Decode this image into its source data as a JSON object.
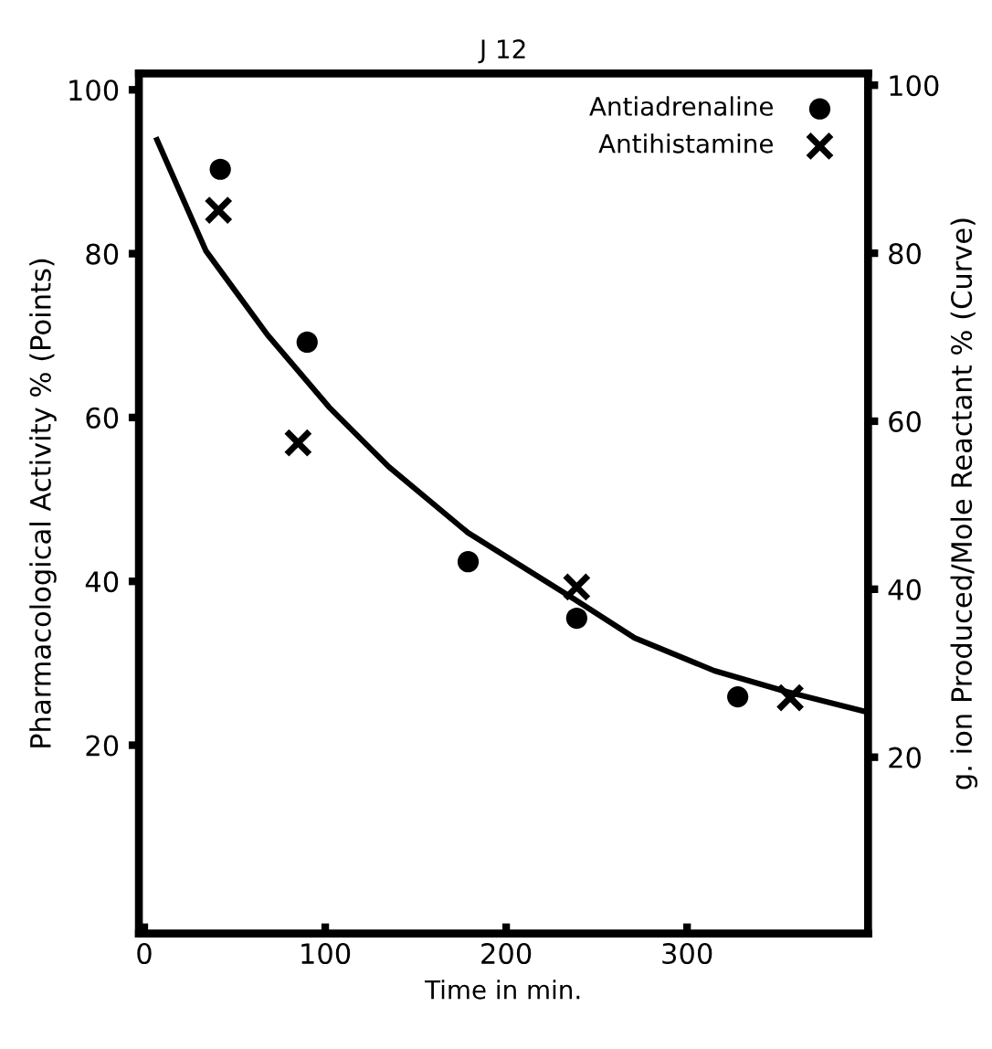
{
  "chart_data": {
    "type": "scatter",
    "title": "J 12",
    "xlabel": "Time in min.",
    "ylabel": "Pharmacological Activity % (Points)",
    "y2label": "g. ion Produced/Mole Reactant % (Curve)",
    "xlim": [
      -3,
      400
    ],
    "xticks": [
      0,
      100,
      200,
      300
    ],
    "ylim": [
      -3,
      102
    ],
    "yticks": [
      20,
      40,
      60,
      80,
      100
    ],
    "y2lim": [
      -1,
      101.4
    ],
    "y2ticks": [
      20,
      40,
      60,
      80,
      100
    ],
    "legend": "top right",
    "grid": false,
    "series": [
      {
        "name": "Antiadrenaline",
        "marker": "circle",
        "color": "#000000",
        "x": [
          42,
          90,
          179,
          239,
          328
        ],
        "values": [
          90.3,
          69.2,
          42.4,
          35.5,
          25.9
        ]
      },
      {
        "name": "Antihistamine",
        "marker": "cross",
        "color": "#000000",
        "x": [
          41,
          85,
          239,
          357
        ],
        "values": [
          85.3,
          56.9,
          39.3,
          25.8
        ]
      },
      {
        "type": "line",
        "axis": "y2",
        "color": "#000000",
        "line_style": "solid",
        "marker": "none",
        "x": [
          7,
          34,
          68,
          102,
          135,
          179,
          237,
          271,
          315,
          355,
          399
        ],
        "values": [
          93.5,
          80.3,
          70.3,
          61.7,
          54.6,
          46.7,
          38.9,
          34.2,
          30.3,
          27.8,
          25.4
        ]
      }
    ]
  }
}
